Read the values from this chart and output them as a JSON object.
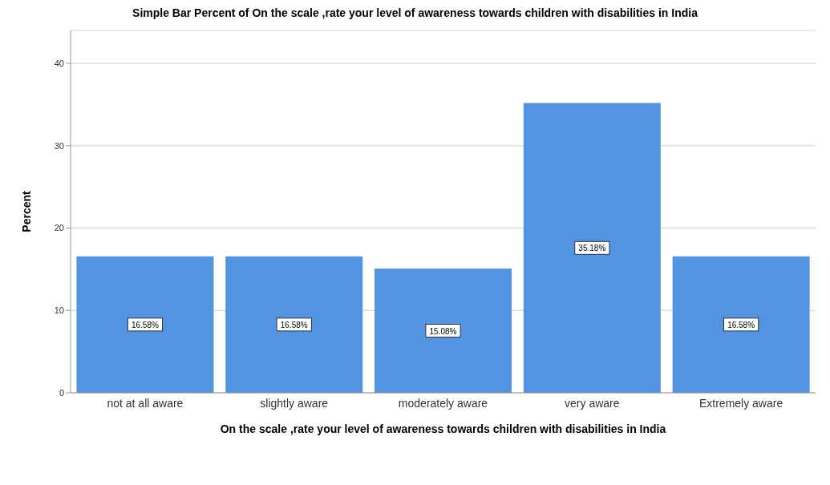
{
  "chart_data": {
    "type": "bar",
    "title": "Simple Bar Percent of On the scale ,rate your level of awareness towards children with disabilities in India",
    "xlabel": "On the scale ,rate your level of awareness towards children with disabilities in India",
    "ylabel": "Percent",
    "categories": [
      "not at all aware",
      "slightly aware",
      "moderately aware",
      "very aware",
      "Extremely aware"
    ],
    "values": [
      16.58,
      16.58,
      15.08,
      35.18,
      16.58
    ],
    "value_labels": [
      "16.58%",
      "16.58%",
      "15.08%",
      "35.18%",
      "16.58%"
    ],
    "color": "#5294e2",
    "ylim": [
      0,
      44
    ],
    "yticks": [
      0,
      10,
      20,
      30,
      40
    ],
    "grid": "y"
  }
}
